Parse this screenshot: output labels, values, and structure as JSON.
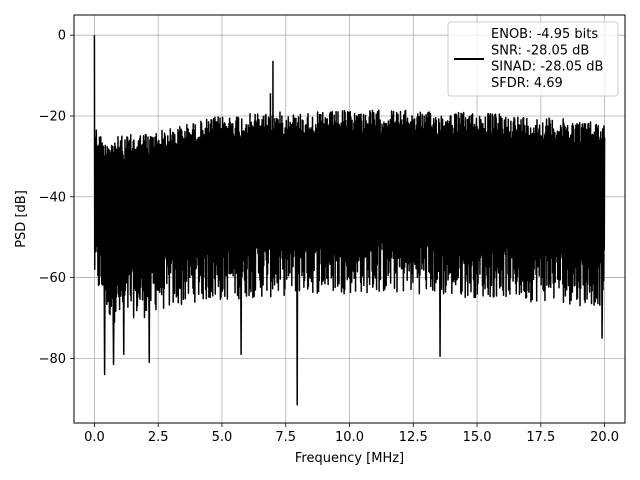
{
  "chart_data": {
    "type": "line",
    "xlabel": "Frequency [MHz]",
    "ylabel": "PSD [dB]",
    "xlim": [
      -0.8,
      20.8
    ],
    "ylim": [
      -96,
      5
    ],
    "xticks": [
      0.0,
      2.5,
      5.0,
      7.5,
      10.0,
      12.5,
      15.0,
      17.5,
      20.0
    ],
    "xtick_labels": [
      "0.0",
      "2.5",
      "5.0",
      "7.5",
      "10.0",
      "12.5",
      "15.0",
      "17.5",
      "20.0"
    ],
    "yticks": [
      0,
      -20,
      -40,
      -60,
      -80
    ],
    "ytick_labels": [
      "0",
      "−20",
      "−40",
      "−60",
      "−80"
    ],
    "grid": true,
    "legend_position": "top-right",
    "series": [
      {
        "name": "ENOB: -4.95 bits\nSNR: -28.05 dB\nSINAD: -28.05 dB\nSFDR: 4.69",
        "color": "#000000",
        "upper_envelope": {
          "x": [
            0.0,
            0.1,
            0.3,
            0.6,
            1.0,
            1.5,
            2.0,
            2.5,
            3.0,
            3.5,
            4.0,
            4.5,
            5.0,
            5.5,
            6.0,
            6.5,
            7.0,
            7.5,
            8.0,
            9.0,
            10.0,
            11.0,
            12.0,
            13.0,
            14.0,
            15.0,
            16.0,
            17.0,
            18.0,
            19.0,
            20.0
          ],
          "y": [
            -21,
            -23,
            -25,
            -25,
            -25,
            -24.5,
            -24,
            -23.5,
            -23,
            -22,
            -21.5,
            -20.5,
            -20,
            -19.5,
            -19.5,
            -19,
            -19,
            -19,
            -19,
            -19,
            -18.5,
            -18.5,
            -18.5,
            -19,
            -19,
            -19,
            -19.5,
            -20,
            -20.5,
            -21,
            -21.5
          ]
        },
        "lower_envelope": {
          "x": [
            0.0,
            0.5,
            1.0,
            1.5,
            2.0,
            2.5,
            3.0,
            4.0,
            5.0,
            6.0,
            7.0,
            8.0,
            9.0,
            10.0,
            11.0,
            12.0,
            13.0,
            14.0,
            15.0,
            16.0,
            17.0,
            18.0,
            19.0,
            20.0
          ],
          "y": [
            -62,
            -70,
            -72,
            -70,
            -70,
            -68,
            -68,
            -66,
            -66,
            -65,
            -65,
            -64,
            -64,
            -64,
            -64,
            -64,
            -64,
            -65,
            -65,
            -65,
            -66,
            -66,
            -67,
            -67
          ]
        },
        "peaks": [
          {
            "x": 0.0,
            "y": 0.0
          },
          {
            "x": 7.0,
            "y": -6.5
          },
          {
            "x": 6.9,
            "y": -14.5
          }
        ],
        "dips": [
          {
            "x": 0.4,
            "y": -84
          },
          {
            "x": 0.75,
            "y": -81.5
          },
          {
            "x": 1.15,
            "y": -79
          },
          {
            "x": 2.15,
            "y": -81
          },
          {
            "x": 5.75,
            "y": -79
          },
          {
            "x": 7.95,
            "y": -91.5
          },
          {
            "x": 13.55,
            "y": -79.5
          },
          {
            "x": 19.9,
            "y": -75
          }
        ]
      }
    ]
  }
}
